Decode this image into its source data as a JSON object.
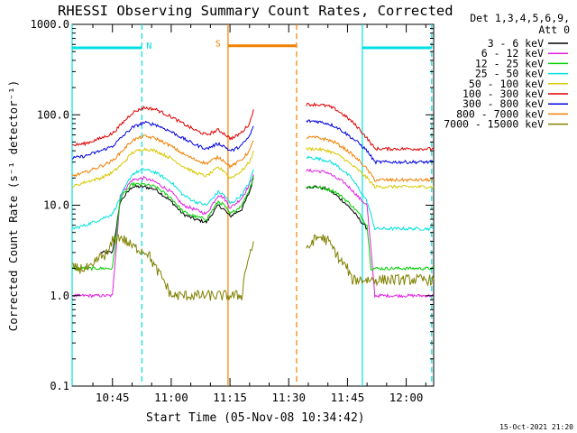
{
  "chart_data": {
    "type": "line",
    "title": "RHESSI Observing Summary Count Rates, Corrected",
    "xlabel": "Start Time (05-Nov-08 10:34:42)",
    "ylabel": "Corrected Count Rate (s⁻¹ detector⁻¹)",
    "y_scale": "log",
    "ylim": [
      0.1,
      1000
    ],
    "xlim_minutes_of_day": [
      634.7,
      727
    ],
    "x_ticks": [
      {
        "t": 645,
        "label": "10:45"
      },
      {
        "t": 660,
        "label": "11:00"
      },
      {
        "t": 675,
        "label": "11:15"
      },
      {
        "t": 690,
        "label": "11:30"
      },
      {
        "t": 705,
        "label": "11:45"
      },
      {
        "t": 720,
        "label": "12:00"
      }
    ],
    "y_ticks": [
      {
        "v": 0.1,
        "label": "0.1"
      },
      {
        "v": 1,
        "label": "1.0"
      },
      {
        "v": 10,
        "label": "10.0"
      },
      {
        "v": 100,
        "label": "100.0"
      },
      {
        "v": 1000,
        "label": "1000.0"
      }
    ],
    "legend": {
      "placement": "right",
      "header": [
        "Det 1,3,4,5,6,9,",
        "Att 0"
      ],
      "entries": [
        {
          "label": "3 - 6 keV",
          "color": "#000000"
        },
        {
          "label": "6 - 12 keV",
          "color": "#e020e0"
        },
        {
          "label": "12 - 25 keV",
          "color": "#00d000"
        },
        {
          "label": "25 - 50 keV",
          "color": "#00e0e0"
        },
        {
          "label": "50 - 100 keV",
          "color": "#d8c800"
        },
        {
          "label": "100 - 300 keV",
          "color": "#e00000"
        },
        {
          "label": "300 - 800 keV",
          "color": "#0000e0"
        },
        {
          "label": "800 - 7000 keV",
          "color": "#f08000"
        },
        {
          "label": "7000 - 15000 keV",
          "color": "#808000"
        }
      ]
    },
    "intervals": [
      {
        "name": "night",
        "label": "N",
        "color": "#00e0e0",
        "ranges": [
          [
            634.7,
            652.5
          ],
          [
            708.8,
            726.5
          ]
        ],
        "level": 550
      },
      {
        "name": "saa",
        "label": "S",
        "color": "#f08000",
        "ranges": [
          [
            674.5,
            692
          ]
        ],
        "level": 580
      }
    ],
    "markers": [
      {
        "t": 634.7,
        "color": "#00e0e0",
        "style": "solid"
      },
      {
        "t": 652.5,
        "color": "#00e0e0",
        "style": "dashed"
      },
      {
        "t": 674.5,
        "color": "#f08000",
        "style": "solid"
      },
      {
        "t": 692,
        "color": "#f08000",
        "style": "dashed"
      },
      {
        "t": 708.8,
        "color": "#00e0e0",
        "style": "solid"
      },
      {
        "t": 726.5,
        "color": "#00e0e0",
        "style": "dashed"
      }
    ],
    "series": [
      {
        "name": "3 - 6 keV",
        "color": "#000000",
        "segments": [
          {
            "t": [
              642,
              645,
              647,
              650,
              653,
              656,
              660,
              663,
              666,
              669,
              672,
              673.5,
              675,
              676,
              678,
              680,
              681
            ],
            "v": [
              3,
              3,
              11,
              16,
              16,
              15,
              11,
              8,
              7,
              6.5,
              10,
              9,
              7.5,
              8,
              9,
              14,
              20
            ]
          },
          {
            "t": [
              694.5,
              697,
              700,
              702,
              704,
              706,
              708,
              710
            ],
            "v": [
              16,
              16,
              15,
              13,
              11,
              9,
              7,
              5.5
            ]
          }
        ]
      },
      {
        "name": "6 - 12 keV",
        "color": "#e020e0",
        "segments": [
          {
            "t": [
              634.7,
              645,
              647,
              650,
              653,
              656,
              660,
              663,
              666,
              669,
              672,
              673.5,
              675,
              676,
              678,
              680,
              681
            ],
            "v": [
              1,
              1,
              13,
              19,
              20,
              18,
              14,
              10,
              9,
              8,
              13,
              12,
              9.5,
              10,
              12,
              17,
              22
            ]
          },
          {
            "t": [
              694.5,
              697,
              700,
              702,
              704,
              706,
              708,
              710,
              712,
              727
            ],
            "v": [
              24,
              24,
              23,
              20,
              18,
              15,
              12,
              10,
              1,
              1
            ]
          }
        ]
      },
      {
        "name": "12 - 25 keV",
        "color": "#00d000",
        "segments": [
          {
            "t": [
              634.7,
              644,
              645,
              647,
              650,
              653,
              656,
              660,
              663,
              666,
              669,
              672,
              673.5,
              675,
              676,
              678,
              680,
              681
            ],
            "v": [
              2,
              2,
              2,
              12,
              17,
              17,
              16,
              12,
              8.5,
              7.5,
              7,
              11,
              10,
              8,
              8.5,
              10,
              15,
              21
            ]
          },
          {
            "t": [
              694.5,
              697,
              700,
              702,
              704,
              706,
              708,
              710,
              711,
              727
            ],
            "v": [
              16,
              16,
              15,
              14,
              12,
              10,
              8,
              6,
              2,
              2
            ]
          }
        ]
      },
      {
        "name": "25 - 50 keV",
        "color": "#00e0e0",
        "segments": [
          {
            "t": [
              634.7,
              638,
              642,
              645,
              648,
              650,
              653,
              656,
              660,
              663,
              666,
              669,
              672,
              673.5,
              675,
              676,
              678,
              680,
              681
            ],
            "v": [
              5.5,
              6,
              7,
              8,
              15,
              22,
              25,
              23,
              18,
              13,
              11,
              10,
              14,
              13,
              10.5,
              11,
              13,
              18,
              25
            ]
          },
          {
            "t": [
              694.5,
              697,
              700,
              702,
              704,
              706,
              708,
              710,
              712,
              727
            ],
            "v": [
              34,
              33,
              31,
              28,
              24,
              20,
              15,
              11,
              5.5,
              5.5
            ]
          }
        ]
      },
      {
        "name": "50 - 100 keV",
        "color": "#d8c800",
        "segments": [
          {
            "t": [
              634.7,
              638,
              642,
              645,
              648,
              650,
              653,
              656,
              660,
              663,
              666,
              669,
              672,
              673.5,
              675,
              676,
              678,
              680,
              681
            ],
            "v": [
              16,
              18,
              20,
              23,
              30,
              38,
              42,
              40,
              33,
              27,
              23,
              21,
              26,
              24,
              20,
              21,
              24,
              30,
              40
            ]
          },
          {
            "t": [
              694.5,
              697,
              700,
              702,
              704,
              706,
              708,
              710,
              712,
              727
            ],
            "v": [
              42,
              42,
              40,
              37,
              33,
              28,
              24,
              20,
              16,
              16
            ]
          }
        ]
      },
      {
        "name": "100 - 300 keV",
        "color": "#e00000",
        "segments": [
          {
            "t": [
              634.7,
              638,
              642,
              645,
              648,
              650,
              653,
              656,
              660,
              663,
              666,
              669,
              672,
              673.5,
              675,
              676,
              678,
              680,
              681
            ],
            "v": [
              46,
              48,
              55,
              62,
              85,
              105,
              120,
              115,
              95,
              80,
              68,
              60,
              68,
              62,
              55,
              56,
              64,
              80,
              115
            ]
          },
          {
            "t": [
              694.5,
              697,
              700,
              702,
              704,
              706,
              708,
              710,
              712,
              727
            ],
            "v": [
              130,
              130,
              125,
              115,
              100,
              85,
              70,
              55,
              42,
              42
            ]
          }
        ]
      },
      {
        "name": "300 - 800 keV",
        "color": "#0000e0",
        "segments": [
          {
            "t": [
              634.7,
              638,
              642,
              645,
              648,
              650,
              653,
              656,
              660,
              663,
              666,
              669,
              672,
              673.5,
              675,
              676,
              678,
              680,
              681
            ],
            "v": [
              33,
              35,
              40,
              45,
              60,
              72,
              82,
              78,
              65,
              55,
              47,
              42,
              48,
              45,
              40,
              41,
              46,
              58,
              75
            ]
          },
          {
            "t": [
              694.5,
              697,
              700,
              702,
              704,
              706,
              708,
              710,
              712,
              727
            ],
            "v": [
              85,
              85,
              80,
              74,
              65,
              56,
              48,
              40,
              30,
              30
            ]
          }
        ]
      },
      {
        "name": "800 - 7000 keV",
        "color": "#f08000",
        "segments": [
          {
            "t": [
              634.7,
              638,
              642,
              645,
              648,
              650,
              653,
              656,
              660,
              663,
              666,
              669,
              672,
              673.5,
              675,
              676,
              678,
              680,
              681
            ],
            "v": [
              21,
              23,
              27,
              31,
              42,
              52,
              58,
              55,
              45,
              37,
              32,
              29,
              34,
              31,
              27,
              28,
              32,
              40,
              52
            ]
          },
          {
            "t": [
              694.5,
              697,
              700,
              702,
              704,
              706,
              708,
              710,
              712,
              727
            ],
            "v": [
              56,
              56,
              53,
              49,
              43,
              37,
              31,
              25,
              19,
              19
            ]
          }
        ]
      },
      {
        "name": "7000 - 15000 keV",
        "color": "#808000",
        "segments": [
          {
            "t": [
              634.7,
              640,
              641,
              644,
              645,
              647,
              650,
              654,
              656,
              658,
              660,
              662,
              670,
              676,
              678,
              679,
              681
            ],
            "v": [
              2,
              2,
              2.5,
              3,
              4,
              4.5,
              3.5,
              3,
              2,
              1.5,
              1,
              1,
              1,
              1,
              1,
              2,
              4
            ]
          },
          {
            "t": [
              694.5,
              696,
              698,
              700,
              702,
              703,
              705,
              706,
              727
            ],
            "v": [
              3,
              4,
              4.5,
              4,
              3,
              2.5,
              2,
              1.5,
              1.5
            ]
          }
        ]
      }
    ]
  },
  "footer": {
    "timestamp": "15-Oct-2021 21:20"
  }
}
